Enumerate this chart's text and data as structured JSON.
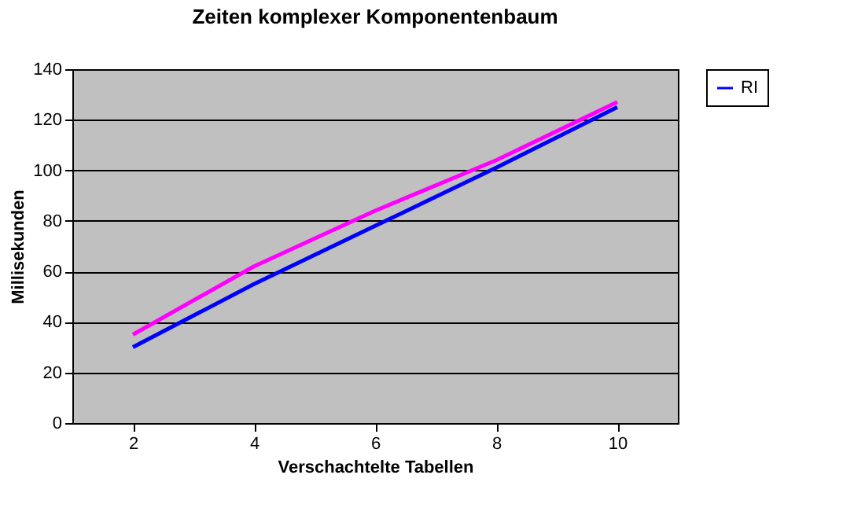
{
  "chart_data": {
    "type": "line",
    "title": "Zeiten komplexer Komponentenbaum",
    "xlabel": "Verschachtelte Tabellen",
    "ylabel": "Millisekunden",
    "categories": [
      "2",
      "4",
      "6",
      "8",
      "10"
    ],
    "series": [
      {
        "color": "#ff00ff",
        "values": [
          35,
          62,
          84,
          104,
          127
        ]
      },
      {
        "name": "RI",
        "color": "#0000ff",
        "values": [
          30,
          55,
          78,
          101,
          125
        ]
      }
    ],
    "ylim": [
      0,
      140
    ],
    "yticks": [
      0,
      20,
      40,
      60,
      80,
      100,
      120,
      140
    ],
    "grid": "y",
    "legend": "right",
    "marker": "none",
    "line_style": "solid"
  }
}
